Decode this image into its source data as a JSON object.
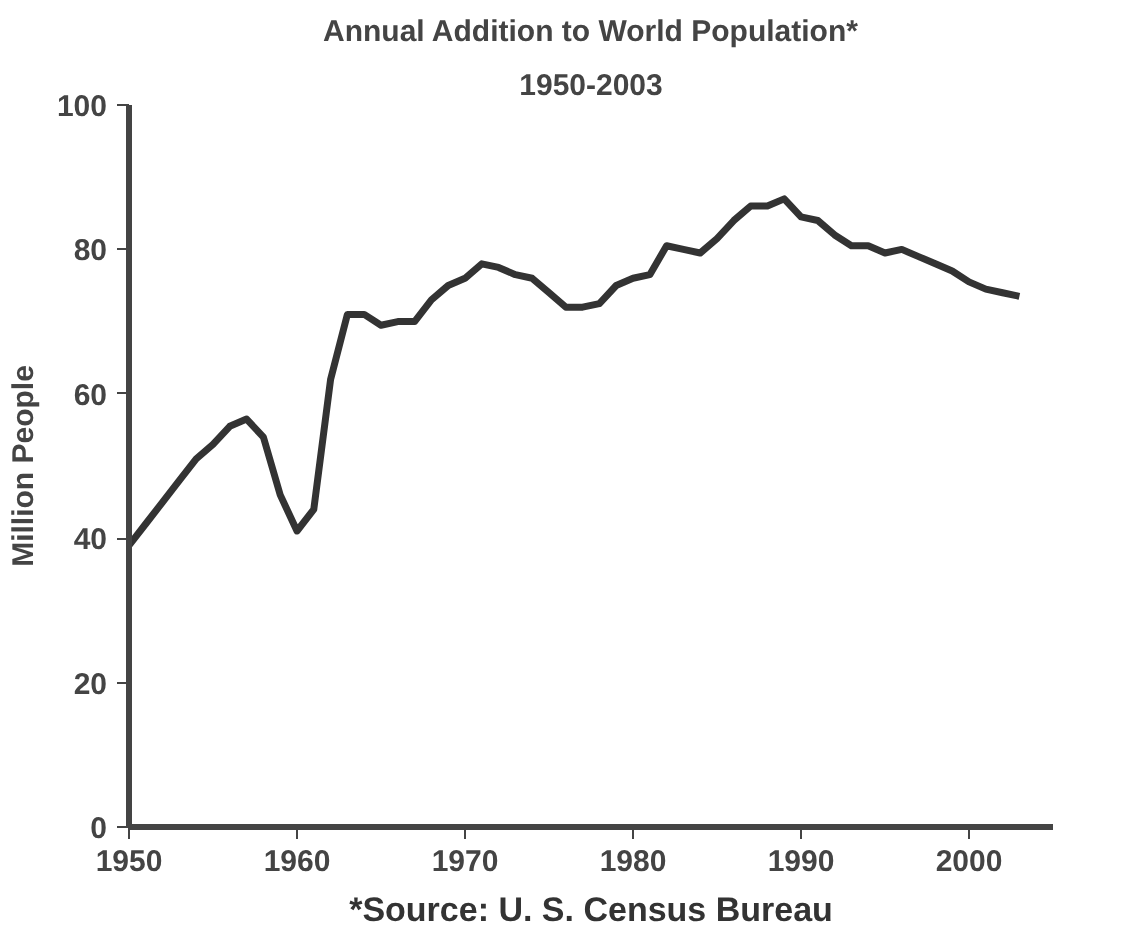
{
  "chart_data": {
    "type": "line",
    "title": "Annual Addition to World Population*",
    "subtitle": "1950-2003",
    "ylabel": "Million People",
    "annotations": [
      "*Source: U. S. Census Bureau"
    ],
    "x": [
      1950,
      1951,
      1952,
      1953,
      1954,
      1955,
      1956,
      1957,
      1958,
      1959,
      1960,
      1961,
      1962,
      1963,
      1964,
      1965,
      1966,
      1967,
      1968,
      1969,
      1970,
      1971,
      1972,
      1973,
      1974,
      1975,
      1976,
      1977,
      1978,
      1979,
      1980,
      1981,
      1982,
      1983,
      1984,
      1985,
      1986,
      1987,
      1988,
      1989,
      1990,
      1991,
      1992,
      1993,
      1994,
      1995,
      1996,
      1997,
      1998,
      1999,
      2000,
      2001,
      2002,
      2003
    ],
    "series": [
      {
        "color": "#333333",
        "values": [
          39,
          42,
          45,
          48,
          51,
          53,
          55.5,
          56.5,
          54,
          46,
          41,
          44,
          62,
          71,
          71,
          69.5,
          70,
          70,
          73,
          75,
          76,
          78,
          77.5,
          76.5,
          76,
          74,
          72,
          72,
          72.5,
          75,
          76,
          76.5,
          80.5,
          80,
          79.5,
          81.5,
          84,
          86,
          86,
          87,
          84.5,
          84,
          82,
          80.5,
          80.5,
          79.5,
          80,
          79,
          78,
          77,
          75.5,
          74.5,
          74,
          73.5
        ]
      }
    ],
    "xlim": [
      1950,
      2005
    ],
    "ylim": [
      0,
      100
    ],
    "xticks": [
      1950,
      1960,
      1970,
      1980,
      1990,
      2000
    ],
    "yticks": [
      0,
      20,
      40,
      60,
      80,
      100
    ],
    "grid": false
  }
}
